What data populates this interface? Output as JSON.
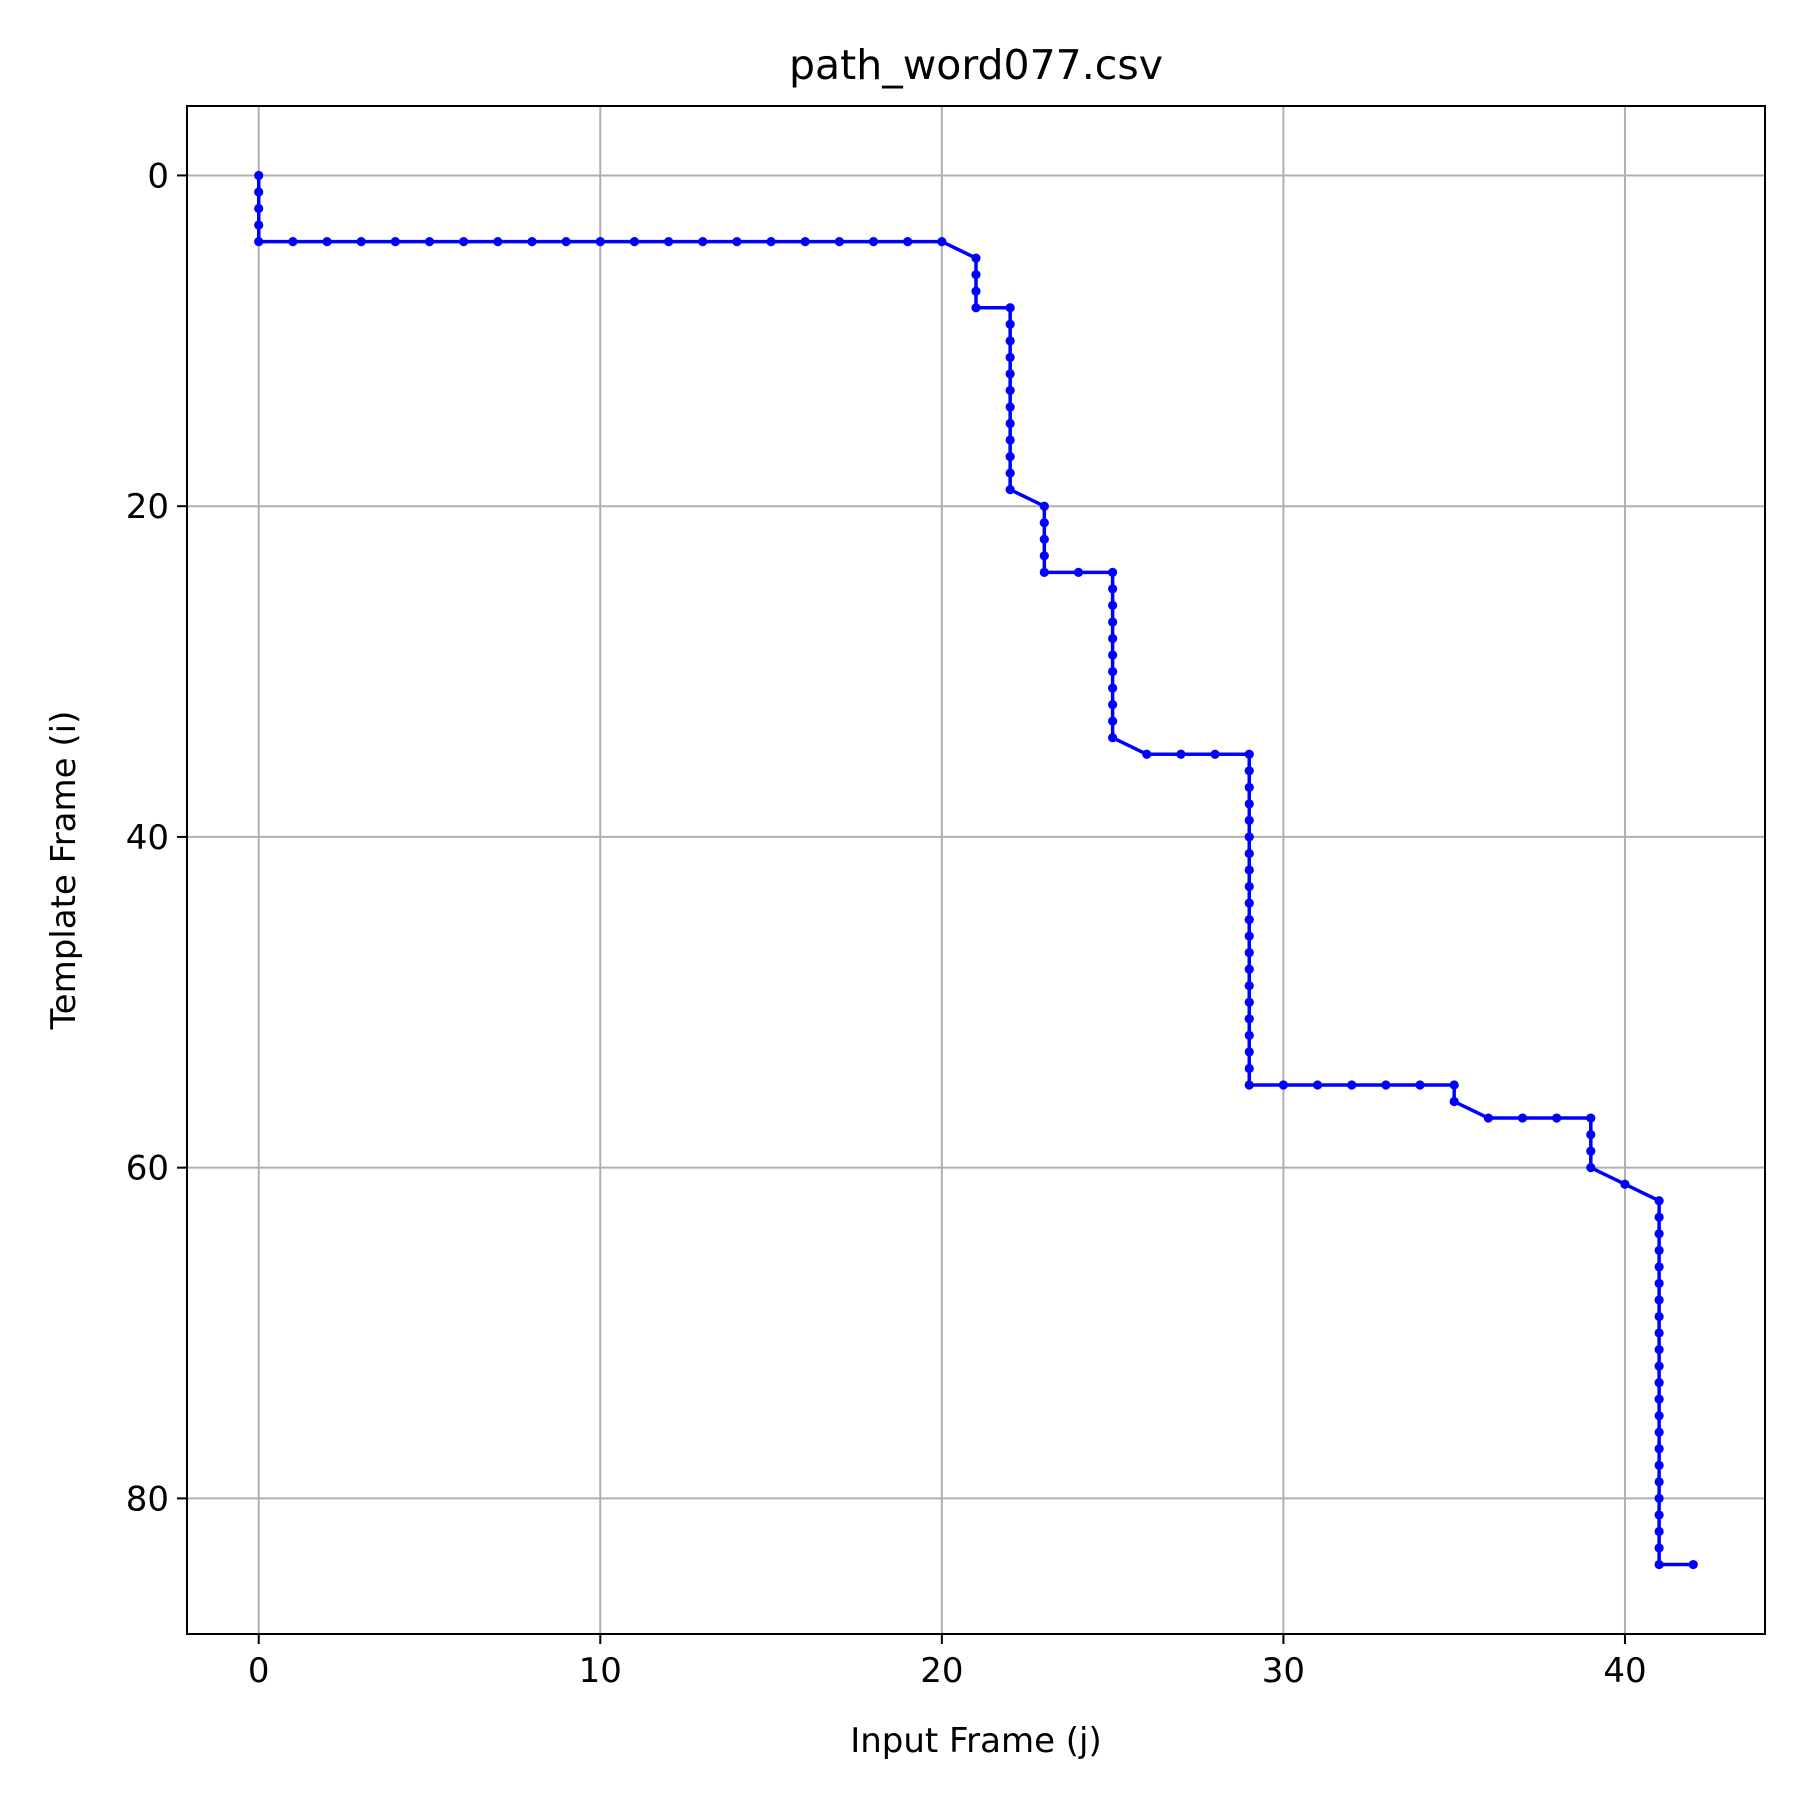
{
  "chart_data": {
    "type": "line",
    "title": "path_word077.csv",
    "xlabel": "Input Frame (j)",
    "ylabel": "Template Frame (i)",
    "xlim": [
      -2.1,
      44.1
    ],
    "ylim": [
      88.2,
      -4.2
    ],
    "y_inverted": true,
    "grid": true,
    "xticks": [
      0,
      10,
      20,
      30,
      40
    ],
    "yticks": [
      0,
      20,
      40,
      60,
      80
    ],
    "series": [
      {
        "color": "#0000ff",
        "marker": "circle",
        "x": [
          0,
          0,
          0,
          0,
          0,
          1,
          2,
          3,
          4,
          5,
          6,
          7,
          8,
          9,
          10,
          11,
          12,
          13,
          14,
          15,
          16,
          17,
          18,
          19,
          20,
          21,
          21,
          21,
          21,
          22,
          22,
          22,
          22,
          22,
          22,
          22,
          22,
          22,
          22,
          22,
          22,
          23,
          23,
          23,
          23,
          23,
          24,
          25,
          25,
          25,
          25,
          25,
          25,
          25,
          25,
          25,
          25,
          25,
          26,
          27,
          28,
          29,
          29,
          29,
          29,
          29,
          29,
          29,
          29,
          29,
          29,
          29,
          29,
          29,
          29,
          29,
          29,
          29,
          29,
          29,
          29,
          29,
          30,
          31,
          32,
          33,
          34,
          35,
          35,
          36,
          37,
          38,
          39,
          39,
          39,
          39,
          40,
          41,
          41,
          41,
          41,
          41,
          41,
          41,
          41,
          41,
          41,
          41,
          41,
          41,
          41,
          41,
          41,
          41,
          41,
          41,
          41,
          41,
          41,
          41,
          42
        ],
        "y": [
          0,
          1,
          2,
          3,
          4,
          4,
          4,
          4,
          4,
          4,
          4,
          4,
          4,
          4,
          4,
          4,
          4,
          4,
          4,
          4,
          4,
          4,
          4,
          4,
          4,
          5,
          6,
          7,
          8,
          8,
          9,
          10,
          11,
          12,
          13,
          14,
          15,
          16,
          17,
          18,
          19,
          20,
          21,
          22,
          23,
          24,
          24,
          24,
          25,
          26,
          27,
          28,
          29,
          30,
          31,
          32,
          33,
          34,
          35,
          35,
          35,
          35,
          36,
          37,
          38,
          39,
          40,
          41,
          42,
          43,
          44,
          45,
          46,
          47,
          48,
          49,
          50,
          51,
          52,
          53,
          54,
          55,
          55,
          55,
          55,
          55,
          55,
          55,
          56,
          57,
          57,
          57,
          57,
          58,
          59,
          60,
          61,
          62,
          63,
          64,
          65,
          66,
          67,
          68,
          69,
          70,
          71,
          72,
          73,
          74,
          75,
          76,
          77,
          78,
          79,
          80,
          81,
          82,
          83,
          84,
          84
        ]
      }
    ]
  }
}
